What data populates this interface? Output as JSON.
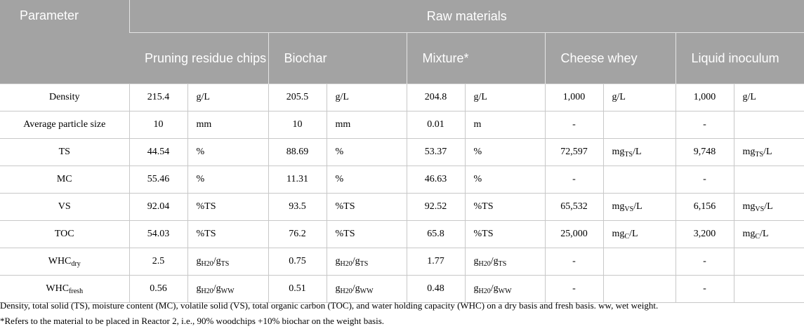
{
  "header": {
    "parameter": "Parameter",
    "group": "Raw materials",
    "materials": [
      "Pruning residue chips",
      "Biochar",
      "Mixture*",
      "Cheese whey",
      "Liquid inoculum"
    ]
  },
  "rows": [
    {
      "param": [
        {
          "t": "Density"
        }
      ],
      "cells": [
        {
          "v": "215.4",
          "u": [
            {
              "t": "g/L"
            }
          ]
        },
        {
          "v": "205.5",
          "u": [
            {
              "t": "g/L"
            }
          ]
        },
        {
          "v": "204.8",
          "u": [
            {
              "t": "g/L"
            }
          ]
        },
        {
          "v": "1,000",
          "u": [
            {
              "t": "g/L"
            }
          ]
        },
        {
          "v": "1,000",
          "u": [
            {
              "t": "g/L"
            }
          ]
        }
      ]
    },
    {
      "param": [
        {
          "t": "Average particle size"
        }
      ],
      "cells": [
        {
          "v": "10",
          "u": [
            {
              "t": "mm"
            }
          ]
        },
        {
          "v": "10",
          "u": [
            {
              "t": "mm"
            }
          ]
        },
        {
          "v": "0.01",
          "u": [
            {
              "t": "m"
            }
          ]
        },
        {
          "v": "-",
          "u": []
        },
        {
          "v": "-",
          "u": []
        }
      ]
    },
    {
      "param": [
        {
          "t": "TS"
        }
      ],
      "cells": [
        {
          "v": "44.54",
          "u": [
            {
              "t": "%"
            }
          ]
        },
        {
          "v": "88.69",
          "u": [
            {
              "t": "%"
            }
          ]
        },
        {
          "v": "53.37",
          "u": [
            {
              "t": "%"
            }
          ]
        },
        {
          "v": "72,597",
          "u": [
            {
              "t": "mg"
            },
            {
              "t": "TS",
              "sub": true
            },
            {
              "t": "/L"
            }
          ]
        },
        {
          "v": "9,748",
          "u": [
            {
              "t": "mg"
            },
            {
              "t": "TS",
              "sub": true
            },
            {
              "t": "/L"
            }
          ]
        }
      ]
    },
    {
      "param": [
        {
          "t": "MC"
        }
      ],
      "cells": [
        {
          "v": "55.46",
          "u": [
            {
              "t": "%"
            }
          ]
        },
        {
          "v": "11.31",
          "u": [
            {
              "t": "%"
            }
          ]
        },
        {
          "v": "46.63",
          "u": [
            {
              "t": "%"
            }
          ]
        },
        {
          "v": "-",
          "u": []
        },
        {
          "v": "-",
          "u": []
        }
      ]
    },
    {
      "param": [
        {
          "t": "VS"
        }
      ],
      "cells": [
        {
          "v": "92.04",
          "u": [
            {
              "t": "%TS"
            }
          ]
        },
        {
          "v": "93.5",
          "u": [
            {
              "t": "%TS"
            }
          ]
        },
        {
          "v": "92.52",
          "u": [
            {
              "t": "%TS"
            }
          ]
        },
        {
          "v": "65,532",
          "u": [
            {
              "t": "mg"
            },
            {
              "t": "VS",
              "sub": true
            },
            {
              "t": "/L"
            }
          ]
        },
        {
          "v": "6,156",
          "u": [
            {
              "t": "mg"
            },
            {
              "t": "VS",
              "sub": true
            },
            {
              "t": "/L"
            }
          ]
        }
      ]
    },
    {
      "param": [
        {
          "t": "TOC"
        }
      ],
      "cells": [
        {
          "v": "54.03",
          "u": [
            {
              "t": "%TS"
            }
          ]
        },
        {
          "v": "76.2",
          "u": [
            {
              "t": "%TS"
            }
          ]
        },
        {
          "v": "65.8",
          "u": [
            {
              "t": "%TS"
            }
          ]
        },
        {
          "v": "25,000",
          "u": [
            {
              "t": "mg"
            },
            {
              "t": "C",
              "sub": true
            },
            {
              "t": "/L"
            }
          ]
        },
        {
          "v": "3,200",
          "u": [
            {
              "t": "mg"
            },
            {
              "t": "C",
              "sub": true
            },
            {
              "t": "/L"
            }
          ]
        }
      ]
    },
    {
      "param": [
        {
          "t": "WHC"
        },
        {
          "t": "dry",
          "sub": true
        }
      ],
      "cells": [
        {
          "v": "2.5",
          "u": [
            {
              "t": "g"
            },
            {
              "t": "H20",
              "sub": true
            },
            {
              "t": "/g"
            },
            {
              "t": "TS",
              "sub": true
            }
          ]
        },
        {
          "v": "0.75",
          "u": [
            {
              "t": "g"
            },
            {
              "t": "H20",
              "sub": true
            },
            {
              "t": "/g"
            },
            {
              "t": "TS",
              "sub": true
            }
          ]
        },
        {
          "v": "1.77",
          "u": [
            {
              "t": "g"
            },
            {
              "t": "H20",
              "sub": true
            },
            {
              "t": "/g"
            },
            {
              "t": "TS",
              "sub": true
            }
          ]
        },
        {
          "v": "-",
          "u": []
        },
        {
          "v": "-",
          "u": []
        }
      ]
    },
    {
      "param": [
        {
          "t": "WHC"
        },
        {
          "t": "fresh",
          "sub": true
        }
      ],
      "cells": [
        {
          "v": "0.56",
          "u": [
            {
              "t": "g"
            },
            {
              "t": "H20",
              "sub": true
            },
            {
              "t": "/g"
            },
            {
              "t": "WW",
              "sub": true
            }
          ]
        },
        {
          "v": "0.51",
          "u": [
            {
              "t": "g"
            },
            {
              "t": "H20",
              "sub": true
            },
            {
              "t": "/g"
            },
            {
              "t": "WW",
              "sub": true
            }
          ]
        },
        {
          "v": "0.48",
          "u": [
            {
              "t": "g"
            },
            {
              "t": "H20",
              "sub": true
            },
            {
              "t": "/g"
            },
            {
              "t": "WW",
              "sub": true
            }
          ]
        },
        {
          "v": "-",
          "u": []
        },
        {
          "v": "-",
          "u": []
        }
      ]
    }
  ],
  "notes": {
    "abbreviations": "Density, total solid (TS), moisture content (MC), volatile solid (VS), total organic carbon (TOC), and water holding capacity (WHC) on a dry basis and fresh basis. ww, wet weight.",
    "footnote": "*Refers to the material to be placed in Reactor 2, i.e., 90% woodchips +10% biochar on the weight basis."
  }
}
